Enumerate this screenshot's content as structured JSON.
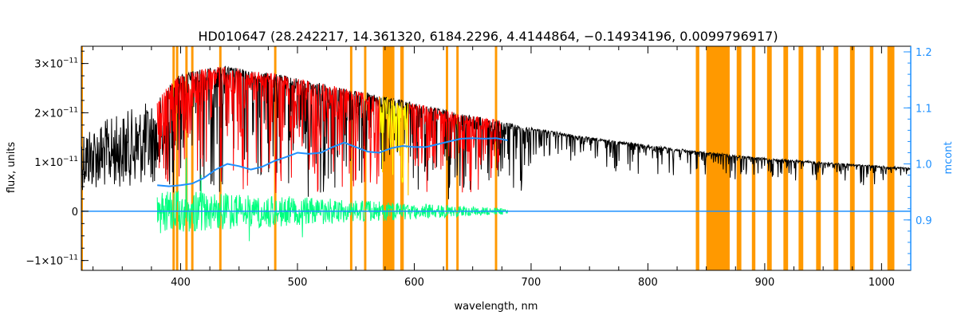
{
  "chart_data": {
    "type": "line",
    "title": "HD010647    (28.242217, 14.361320, 6184.2296, 4.4144864, −0.14934196, 0.0099796917)",
    "xlabel": "wavelength, nm",
    "ylabel": "flux, units",
    "y2label": "mcont",
    "xlim": [
      315,
      1025
    ],
    "ylim": [
      -1.2e-11,
      3.35e-11
    ],
    "y2lim": [
      0.81,
      1.21
    ],
    "xticks": [
      400,
      500,
      600,
      700,
      800,
      900,
      1000
    ],
    "xtick_labels": [
      "400",
      "500",
      "600",
      "700",
      "800",
      "900",
      "1000"
    ],
    "yticks": [
      -1e-11,
      0,
      1e-11,
      2e-11,
      3e-11
    ],
    "ytick_labels": [
      {
        "mantissa": "−1×10",
        "exp": "−11"
      },
      {
        "mantissa": "0",
        "exp": ""
      },
      {
        "mantissa": "1×10",
        "exp": "−11"
      },
      {
        "mantissa": "2×10",
        "exp": "−11"
      },
      {
        "mantissa": "3×10",
        "exp": "−11"
      }
    ],
    "y2ticks": [
      0.9,
      1.0,
      1.1,
      1.2
    ],
    "y2tick_labels": [
      "0.9",
      "1.0",
      "1.1",
      "1.2"
    ],
    "grid": false,
    "colors": {
      "observed": "#000000",
      "model": "#ff0000",
      "model_highlight": "#ffff00",
      "residuals": "#00ff7f",
      "continuum": "#1e90ff",
      "masks": "#ff9900",
      "right_axis": "#1e90ff"
    },
    "mask_bands": [
      [
        315,
        316
      ],
      [
        393,
        395
      ],
      [
        396,
        398
      ],
      [
        404,
        406
      ],
      [
        409,
        411
      ],
      [
        433,
        435
      ],
      [
        480,
        482
      ],
      [
        545,
        547
      ],
      [
        557,
        559
      ],
      [
        573,
        583
      ],
      [
        588,
        591
      ],
      [
        627,
        629
      ],
      [
        636,
        638
      ],
      [
        669,
        671
      ],
      [
        841,
        844
      ],
      [
        850,
        870
      ],
      [
        876,
        880
      ],
      [
        889,
        892
      ],
      [
        902,
        906
      ],
      [
        916,
        920
      ],
      [
        929,
        933
      ],
      [
        944,
        948
      ],
      [
        959,
        963
      ],
      [
        973,
        977
      ],
      [
        990,
        993
      ],
      [
        1005,
        1011
      ]
    ],
    "series": [
      {
        "type": "line",
        "x": [
          315,
          340,
          360,
          380,
          400,
          420,
          440,
          460,
          480,
          500,
          520,
          540,
          560,
          580,
          600,
          620,
          640,
          660,
          680,
          700,
          750,
          800,
          850,
          900,
          950,
          1000,
          1025
        ],
        "values": [
          1.7e-11,
          1.9e-11,
          2.1e-11,
          2.3e-11,
          2.8e-11,
          2.9e-11,
          2.95e-11,
          2.85e-11,
          2.8e-11,
          2.7e-11,
          2.6e-11,
          2.5e-11,
          2.4e-11,
          2.3e-11,
          2.2e-11,
          2.1e-11,
          1.98e-11,
          1.9e-11,
          1.8e-11,
          1.7e-11,
          1.5e-11,
          1.35e-11,
          1.2e-11,
          1.08e-11,
          1e-11,
          9.2e-12,
          8.8e-12
        ]
      },
      {
        "type": "line",
        "x": [
          380,
          400,
          420,
          440,
          460,
          480,
          500,
          520,
          540,
          560,
          580,
          600,
          620,
          640,
          660,
          675
        ],
        "values": [
          2.3e-11,
          2.8e-11,
          2.9e-11,
          2.95e-11,
          2.85e-11,
          2.8e-11,
          2.7e-11,
          2.6e-11,
          2.5e-11,
          2.4e-11,
          2.3e-11,
          2.2e-11,
          2.1e-11,
          1.98e-11,
          1.9e-11,
          1.85e-11
        ]
      },
      {
        "type": "scatter",
        "x_range": [
          380,
          680
        ],
        "amplitude_start": 4.5e-12,
        "amplitude_end": 6e-13
      },
      {
        "type": "line",
        "axis": "right",
        "x": [
          380,
          390,
          400,
          410,
          420,
          430,
          440,
          450,
          460,
          470,
          480,
          490,
          500,
          510,
          520,
          530,
          540,
          550,
          560,
          570,
          580,
          590,
          600,
          610,
          620,
          630,
          640,
          650,
          660,
          670,
          680
        ],
        "values": [
          0.962,
          0.96,
          0.962,
          0.965,
          0.975,
          0.99,
          1.0,
          0.996,
          0.99,
          0.995,
          1.005,
          1.012,
          1.02,
          1.018,
          1.02,
          1.03,
          1.038,
          1.03,
          1.022,
          1.02,
          1.028,
          1.032,
          1.03,
          1.03,
          1.035,
          1.04,
          1.045,
          1.046,
          1.045,
          1.046,
          1.042
        ]
      }
    ]
  }
}
